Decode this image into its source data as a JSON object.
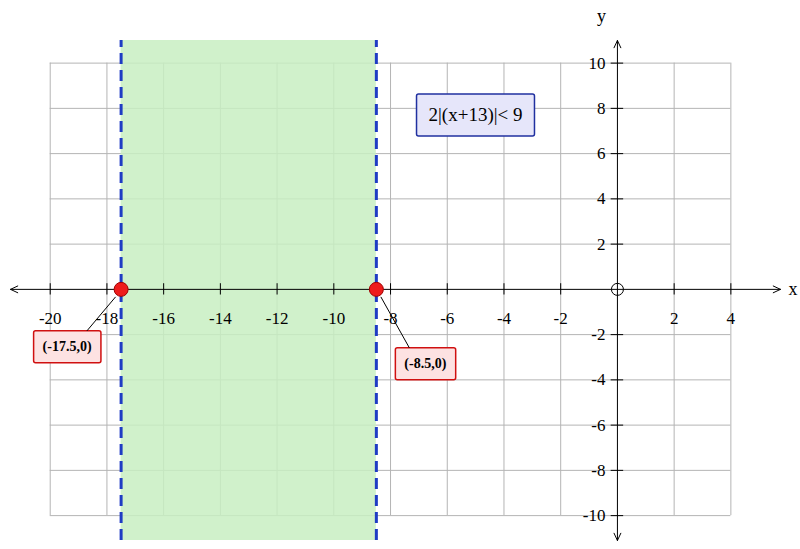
{
  "chart_data": {
    "type": "region",
    "annotation": "2|(x+13)|< 9",
    "x_label": "x",
    "y_label": "y",
    "xlim": [
      -21.4,
      5.75
    ],
    "ylim": [
      -11.1,
      11
    ],
    "xticks": [
      -20,
      -18,
      -16,
      -14,
      -12,
      -10,
      -8,
      -6,
      -4,
      -2,
      2,
      4
    ],
    "yticks": [
      -10,
      -8,
      -6,
      -4,
      -2,
      2,
      4,
      6,
      8,
      10
    ],
    "grid": true,
    "region": {
      "x": [
        -17.5,
        -8.5
      ],
      "color": "#c8efc2"
    },
    "boundaries": {
      "x": [
        -17.5,
        -8.5
      ],
      "color": "#1f3cc4",
      "line_style": "dashed"
    },
    "points": {
      "x": [
        -17.5,
        -8.5
      ],
      "y": [
        0,
        0
      ],
      "labels": [
        "(-17.5,0)",
        "(-8.5,0)"
      ],
      "color": "#ee1c1c"
    }
  }
}
